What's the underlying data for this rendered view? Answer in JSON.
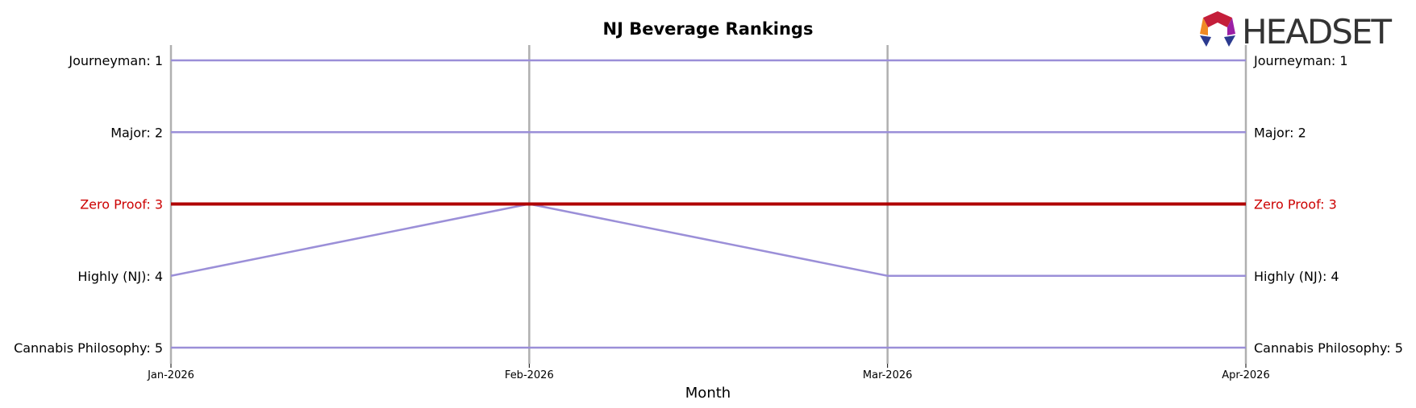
{
  "chart_data": {
    "type": "line",
    "title": "NJ Beverage Rankings",
    "xlabel": "Month",
    "ylabel": "",
    "x": [
      "Jan-2026",
      "Feb-2026",
      "Mar-2026",
      "Apr-2026"
    ],
    "ylim": [
      5,
      1
    ],
    "y_inverted": true,
    "grid": "vertical lines at each month",
    "legend": "none",
    "series": [
      {
        "name": "Journeyman",
        "values": [
          1,
          1,
          1,
          1
        ],
        "color": "#9b8fd8",
        "highlight": false
      },
      {
        "name": "Major",
        "values": [
          2,
          2,
          2,
          2
        ],
        "color": "#9b8fd8",
        "highlight": false
      },
      {
        "name": "Zero Proof",
        "values": [
          3,
          3,
          3,
          3
        ],
        "color": "#b00000",
        "highlight": true
      },
      {
        "name": "Highly (NJ)",
        "values": [
          4,
          3,
          4,
          4
        ],
        "color": "#9b8fd8",
        "highlight": false
      },
      {
        "name": "Cannabis Philosophy",
        "values": [
          5,
          5,
          5,
          5
        ],
        "color": "#9b8fd8",
        "highlight": false
      }
    ],
    "left_labels": [
      "Journeyman: 1",
      "Major: 2",
      "Zero Proof: 3",
      "Highly (NJ): 4",
      "Cannabis Philosophy: 5"
    ],
    "right_labels": [
      "Journeyman: 1",
      "Major: 2",
      "Zero Proof: 3",
      "Highly (NJ): 4",
      "Cannabis Philosophy: 5"
    ]
  },
  "logo": {
    "text": "HEADSET",
    "icon": "headset-logo-icon"
  },
  "colors": {
    "normal_line": "#9b8fd8",
    "highlight_line": "#b00000",
    "highlight_text": "#cc0000",
    "grid": "#b0b0b0"
  }
}
